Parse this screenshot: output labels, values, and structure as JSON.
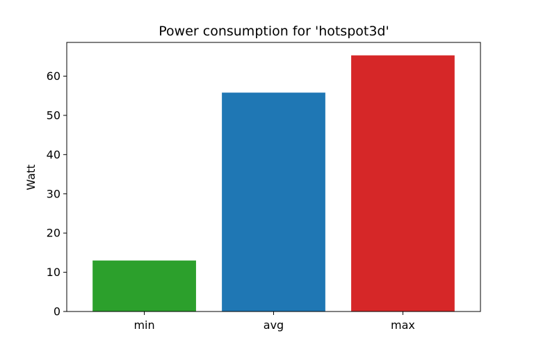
{
  "chart_data": {
    "type": "bar",
    "title": "Power consumption for 'hotspot3d'",
    "xlabel": "",
    "ylabel": "Watt",
    "categories": [
      "min",
      "avg",
      "max"
    ],
    "values": [
      13.0,
      55.8,
      65.3
    ],
    "colors": [
      "#2ca02c",
      "#1f77b4",
      "#d62728"
    ],
    "ylim": [
      0,
      68.6
    ],
    "yticks": [
      0,
      10,
      20,
      30,
      40,
      50,
      60
    ],
    "grid": false,
    "legend": "none"
  }
}
